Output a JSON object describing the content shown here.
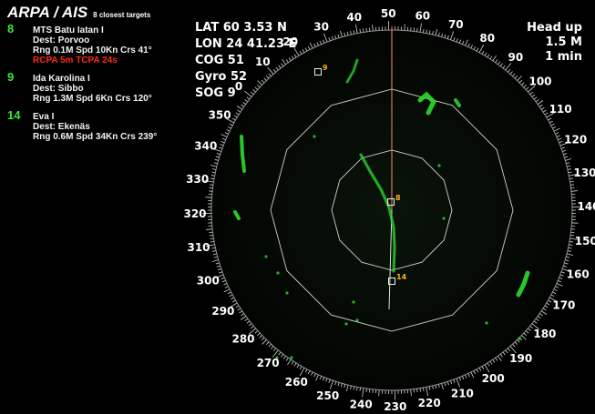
{
  "panel": {
    "title": "ARPA / AIS",
    "subtitle": "8 closest targets",
    "targets": [
      {
        "id": "8",
        "name": "MTS Batu Iatan I",
        "dest": "Dest: Porvoo",
        "data": "Rng 0.1M Spd 10Kn Crs 41°",
        "alarm": "RCPA  5m TCPA 24s"
      },
      {
        "id": "9",
        "name": "Ida Karolina I",
        "dest": "Dest: Sibbo",
        "data": "Rng 1.3M Spd 6Kn Crs 120°",
        "alarm": ""
      },
      {
        "id": "14",
        "name": "Eva I",
        "dest": "Dest: Ekenäs",
        "data": "Rng 0.6M Spd 34Kn Crs 239°",
        "alarm": ""
      }
    ]
  },
  "nav": {
    "lat": "LAT 60 3.53 N",
    "lon": "LON 24 41.23 E",
    "cog": "COG  51",
    "gyro": "Gyro  52",
    "sog": "SOG  9"
  },
  "mode": {
    "orientation": "Head up",
    "range": "1.5 M",
    "trail": "1 min"
  },
  "radar": {
    "bearing_labels": [
      "0",
      "10",
      "20",
      "30",
      "40",
      "50",
      "60",
      "70",
      "80",
      "90",
      "100",
      "110",
      "120",
      "130",
      "140",
      "150",
      "160",
      "170",
      "180",
      "190",
      "200",
      "210",
      "220",
      "230",
      "240",
      "250",
      "260",
      "270",
      "280",
      "290",
      "300",
      "310",
      "320",
      "330",
      "340",
      "350"
    ],
    "target_labels": [
      "8",
      "9",
      "14"
    ],
    "colors": {
      "echo": "#2edc2e",
      "heading_line": "#ff8a6a",
      "target_label": "#ffb21a",
      "ring": "#cfcfcf"
    }
  }
}
